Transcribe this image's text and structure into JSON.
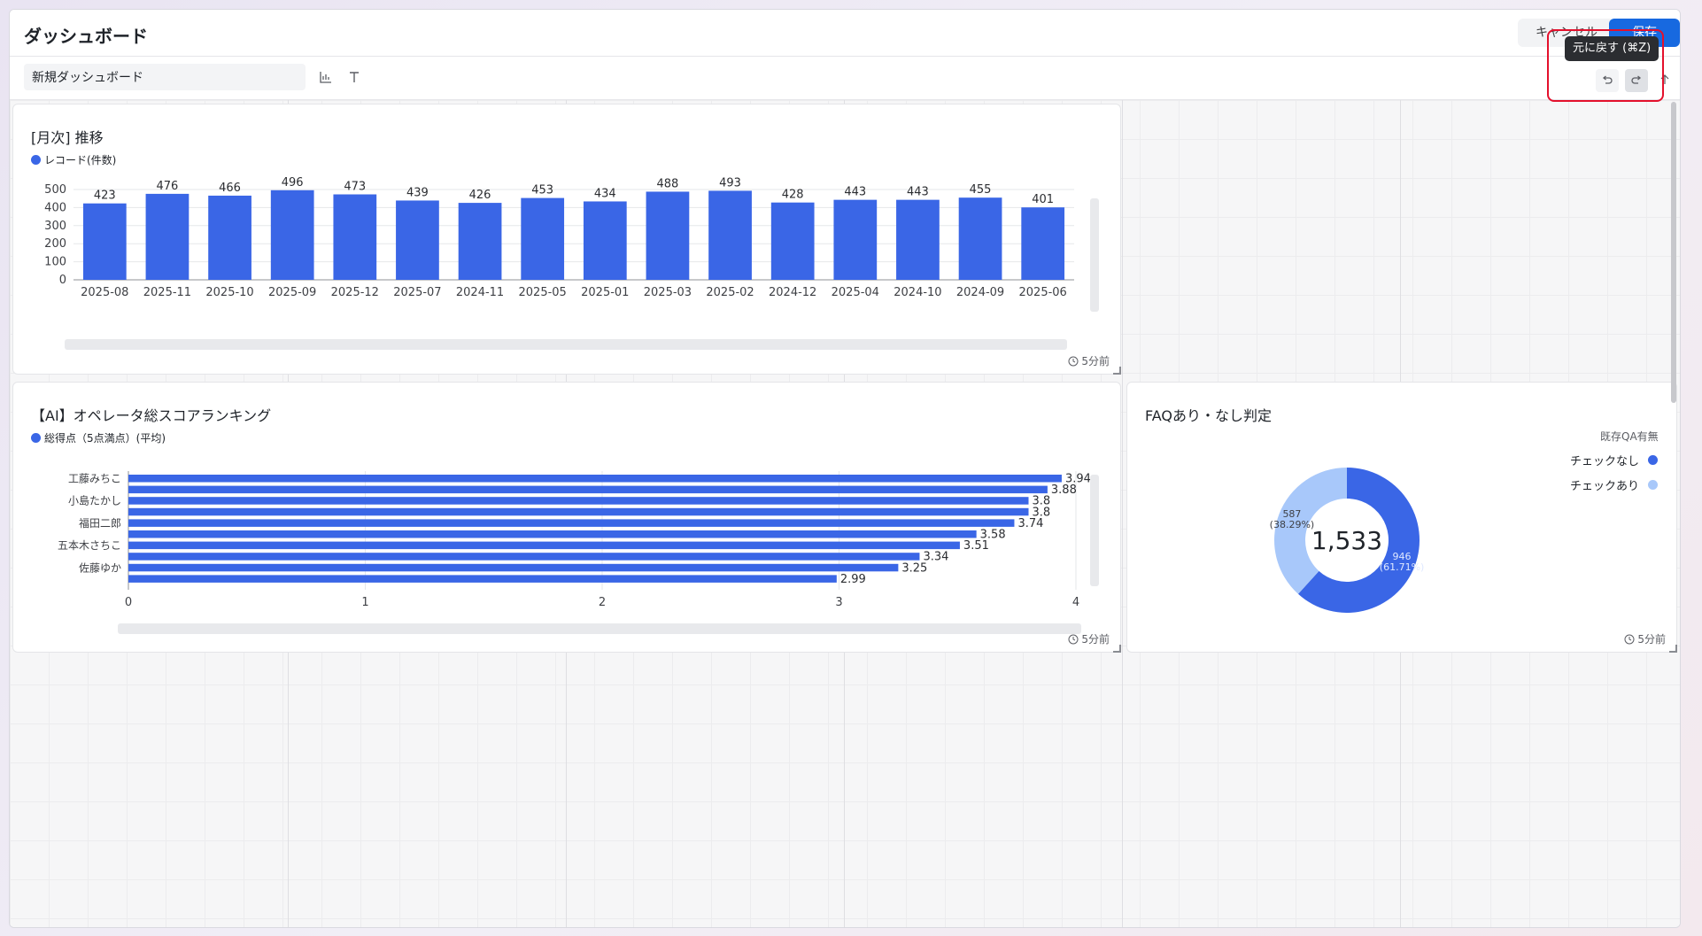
{
  "header": {
    "title": "ダッシュボード",
    "cancel_label": "キャンセル",
    "save_label": "保存"
  },
  "toolbar": {
    "dashboard_name": "新規ダッシュボード",
    "tooltip": "元に戻す (⌘Z)"
  },
  "colors": {
    "accent": "#3a66e6",
    "light_accent": "#a8c8fa",
    "save_button": "#1769e0",
    "highlight": "#e4102c"
  },
  "cards": {
    "monthly": {
      "title": "[月次] 推移",
      "legend": "レコード(件数)",
      "updated": "5分前"
    },
    "ranking": {
      "title": "【AI】オペレータ総スコアランキング",
      "legend": "総得点（5点満点）(平均)",
      "updated": "5分前"
    },
    "faq": {
      "title": "FAQあり・なし判定",
      "legend_title": "既存QA有無",
      "legend_items": [
        "チェックなし",
        "チェックあり"
      ],
      "updated": "5分前"
    }
  },
  "chart_data": [
    {
      "type": "bar",
      "title": "[月次] 推移",
      "categories": [
        "2025-08",
        "2025-11",
        "2025-10",
        "2025-09",
        "2025-12",
        "2025-07",
        "2024-11",
        "2025-05",
        "2025-01",
        "2025-03",
        "2025-02",
        "2024-12",
        "2025-04",
        "2024-10",
        "2024-09",
        "2025-06"
      ],
      "series": [
        {
          "name": "レコード(件数)",
          "values": [
            423,
            476,
            466,
            496,
            473,
            439,
            426,
            453,
            434,
            488,
            493,
            428,
            443,
            443,
            455,
            401
          ]
        }
      ],
      "yticks": [
        0,
        100,
        200,
        300,
        400,
        500
      ],
      "ylim": [
        0,
        520
      ],
      "data_labels": true,
      "grid": true,
      "legend": "top-left"
    },
    {
      "type": "bar",
      "orientation": "horizontal",
      "title": "【AI】オペレータ総スコアランキング",
      "categories": [
        "工藤みちこ",
        "",
        "小島たかし",
        "",
        "福田二郎",
        "",
        "五本木さちこ",
        "",
        "佐藤ゆか",
        ""
      ],
      "series": [
        {
          "name": "総得点（5点満点）(平均)",
          "values": [
            3.94,
            3.88,
            3.8,
            3.8,
            3.74,
            3.58,
            3.51,
            3.34,
            3.25,
            2.99
          ]
        }
      ],
      "xticks": [
        0,
        1,
        2,
        3,
        4
      ],
      "xlim": [
        0,
        4
      ],
      "data_labels": true,
      "grid": true,
      "legend": "top-left"
    },
    {
      "type": "pie",
      "title": "FAQあり・なし判定",
      "donut": true,
      "total": "1,533",
      "legend_title": "既存QA有無",
      "slices": [
        {
          "label": "チェックなし",
          "value": 946,
          "percent_label": "(61.71%)",
          "value_label": "946"
        },
        {
          "label": "チェックあり",
          "value": 587,
          "percent_label": "(38.29%)",
          "value_label": "587"
        }
      ],
      "legend": "right"
    }
  ]
}
